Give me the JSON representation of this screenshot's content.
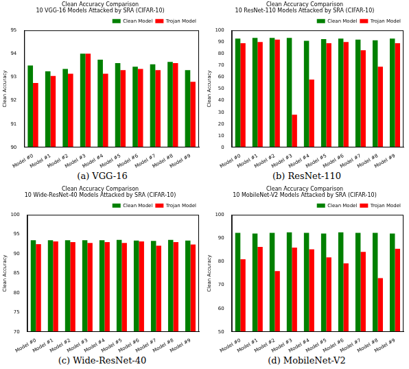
{
  "chart_data": [
    {
      "type": "bar",
      "title": "Clean Accuracy Comparison",
      "subtitle": "10 VGG-16 Models Attacked by SRA (CIFAR-10)",
      "caption": "(a) VGG-16",
      "y_label": "Clean Accuracy",
      "categories": [
        "Model #0",
        "Model #1",
        "Model #2",
        "Model #3",
        "Model #4",
        "Model #5",
        "Model #6",
        "Model #7",
        "Model #8",
        "Model #9"
      ],
      "series": [
        {
          "name": "Clean Model",
          "color": "#008000",
          "values": [
            93.5,
            93.25,
            93.35,
            94.0,
            93.75,
            93.6,
            93.45,
            93.55,
            93.65,
            93.3
          ]
        },
        {
          "name": "Trojan Model",
          "color": "#ff0000",
          "values": [
            92.75,
            93.05,
            93.15,
            94.0,
            93.15,
            93.3,
            93.35,
            93.3,
            93.6,
            92.8
          ]
        }
      ],
      "ylim": [
        90,
        95
      ],
      "yticks": [
        90,
        91,
        92,
        93,
        94,
        95
      ],
      "grid": false,
      "legend": "upper right"
    },
    {
      "type": "bar",
      "title": "Clean Accuracy Comparison",
      "subtitle": "10 ResNet-110 Models Attacked by SRA (CIFAR-10)",
      "caption": "(b) ResNet-110",
      "y_label": "Clean Accuracy",
      "categories": [
        "Model #0",
        "Model #1",
        "Model #2",
        "Model #3",
        "Model #4",
        "Model #5",
        "Model #6",
        "Model #7",
        "Model #8",
        "Model #9"
      ],
      "series": [
        {
          "name": "Clean Model",
          "color": "#008000",
          "values": [
            93,
            93.5,
            93.5,
            93.5,
            91,
            92.5,
            93,
            92,
            91.5,
            93
          ]
        },
        {
          "name": "Trojan Model",
          "color": "#ff0000",
          "values": [
            89,
            90,
            92,
            28,
            58,
            89,
            90,
            83,
            69,
            89
          ]
        }
      ],
      "ylim": [
        0,
        100
      ],
      "yticks": [
        0,
        10,
        20,
        30,
        40,
        50,
        60,
        70,
        80,
        90,
        100
      ],
      "grid": false,
      "legend": "upper right"
    },
    {
      "type": "bar",
      "title": "Clean Accuracy Comparison",
      "subtitle": "10 Wide-ResNet-40 Models Attacked by SRA (CIFAR-10)",
      "caption": "(c) Wide-ResNet-40",
      "y_label": "Clean Accuracy",
      "categories": [
        "Model #0",
        "Model #1",
        "Model #2",
        "Model #3",
        "Model #4",
        "Model #5",
        "Model #6",
        "Model #7",
        "Model #8",
        "Model #9"
      ],
      "series": [
        {
          "name": "Clean Model",
          "color": "#008000",
          "values": [
            93.5,
            93.5,
            93.5,
            93.5,
            93.5,
            93.6,
            93.4,
            93.3,
            93.6,
            93.4
          ]
        },
        {
          "name": "Trojan Model",
          "color": "#ff0000",
          "values": [
            92.5,
            93.2,
            93.0,
            92.8,
            93.0,
            92.8,
            93.2,
            92.1,
            93.0,
            92.4
          ]
        }
      ],
      "ylim": [
        70,
        100
      ],
      "yticks": [
        70,
        75,
        80,
        85,
        90,
        95,
        100
      ],
      "grid": false,
      "legend": "upper right"
    },
    {
      "type": "bar",
      "title": "Clean Accuracy Comparison",
      "subtitle": "10 MobileNet-V2 Models Attacked by SRA (CIFAR-10)",
      "caption": "(d) MobileNet-V2",
      "y_label": "Clean Accuracy",
      "categories": [
        "Model #0",
        "Model #1",
        "Model #2",
        "Model #3",
        "Model #4",
        "Model #5",
        "Model #6",
        "Model #7",
        "Model #8",
        "Model #9"
      ],
      "series": [
        {
          "name": "Clean Model",
          "color": "#008000",
          "values": [
            92.3,
            92.0,
            92.3,
            92.5,
            92.3,
            92.0,
            92.5,
            92.3,
            92.3,
            92.0
          ]
        },
        {
          "name": "Trojan Model",
          "color": "#ff0000",
          "values": [
            81,
            86.3,
            76,
            86,
            85.3,
            81.8,
            79.3,
            84.2,
            73,
            85.5
          ]
        }
      ],
      "ylim": [
        50,
        100
      ],
      "yticks": [
        50,
        60,
        70,
        80,
        90,
        100
      ],
      "grid": false,
      "legend": "upper right"
    }
  ]
}
